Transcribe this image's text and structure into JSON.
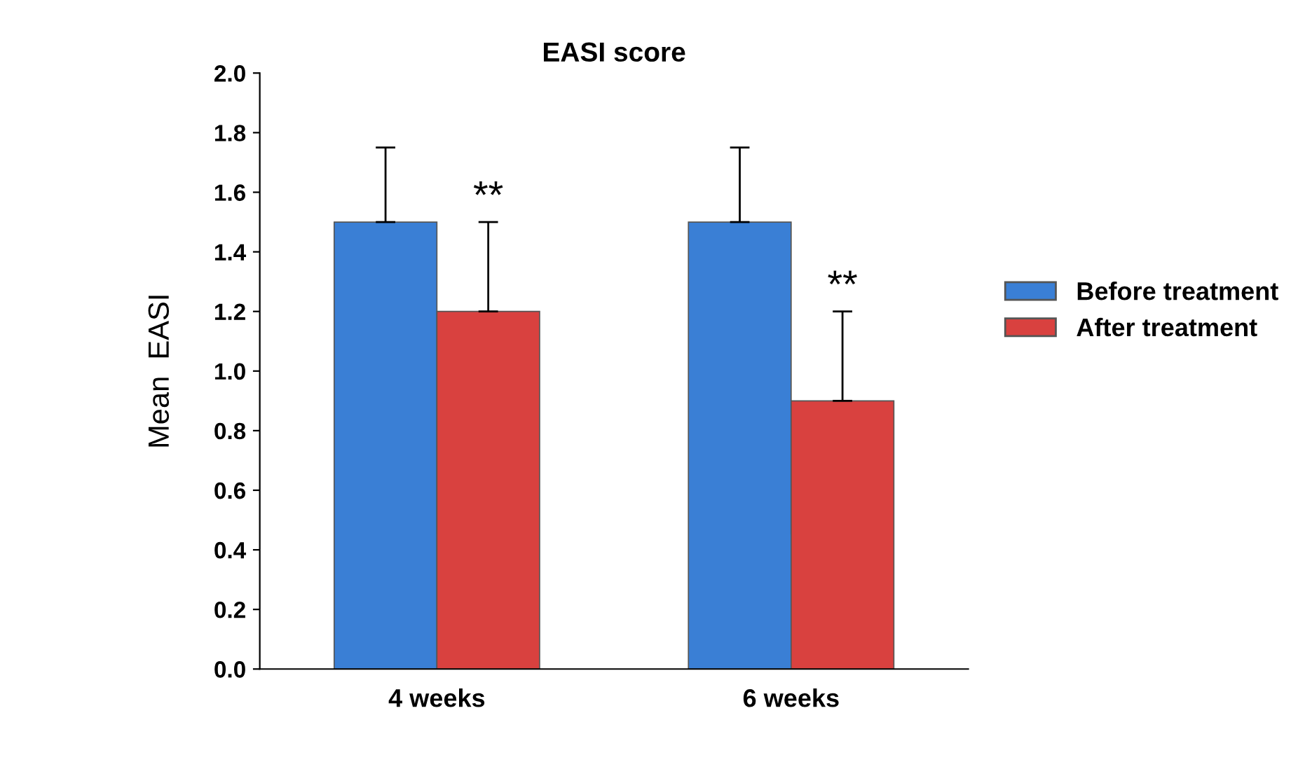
{
  "chart_data": {
    "type": "bar",
    "title": "EASI score",
    "ylabel": "Mean  EASI",
    "categories": [
      "4 weeks",
      "6 weeks"
    ],
    "series": [
      {
        "name": "Before treatment",
        "color": "#3a7fd5",
        "values": [
          1.5,
          1.5
        ],
        "errors": [
          [
            1.5,
            1.75
          ],
          [
            1.5,
            1.75
          ]
        ]
      },
      {
        "name": "After treatment",
        "color": "#d9413f",
        "values": [
          1.2,
          0.9
        ],
        "errors": [
          [
            1.2,
            1.5
          ],
          [
            0.9,
            1.2
          ]
        ]
      }
    ],
    "ylim": [
      0,
      2.0
    ],
    "yticks": [
      {
        "value": 0,
        "label": "0.0"
      },
      {
        "value": 0.2,
        "label": "0.2"
      },
      {
        "value": 0.4,
        "label": "0.4"
      },
      {
        "value": 0.6,
        "label": "0.6"
      },
      {
        "value": 0.8,
        "label": "0.8"
      },
      {
        "value": 1.0,
        "label": "1.0"
      },
      {
        "value": 1.2,
        "label": "1.2"
      },
      {
        "value": 1.4,
        "label": "1.4"
      },
      {
        "value": 1.6,
        "label": "1.6"
      },
      {
        "value": 1.8,
        "label": "1.8"
      },
      {
        "value": 2.0,
        "label": "2.0"
      }
    ],
    "annotations": [
      {
        "text": "**",
        "x": "4 weeks",
        "y": 1.5
      },
      {
        "text": "**",
        "x": "6 weeks",
        "y": 1.2
      }
    ],
    "grid": false,
    "legend": "right"
  }
}
